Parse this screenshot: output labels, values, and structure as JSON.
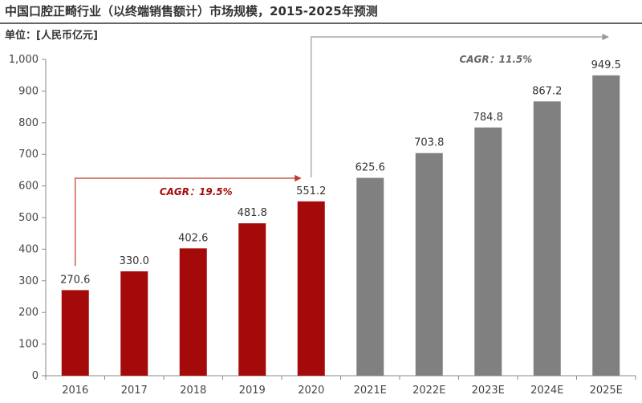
{
  "header": {
    "title": "中国口腔正畸行业（以终端销售额计）市场规模，2015-2025年预测",
    "unit": "单位：[人民币亿元]"
  },
  "chart_data": {
    "type": "bar",
    "categories": [
      "2016",
      "2017",
      "2018",
      "2019",
      "2020",
      "2021E",
      "2022E",
      "2023E",
      "2024E",
      "2025E"
    ],
    "values": [
      270.6,
      330.0,
      402.6,
      481.8,
      551.2,
      625.6,
      703.8,
      784.8,
      867.2,
      949.5
    ],
    "value_labels": [
      "270.6",
      "330.0",
      "402.6",
      "481.8",
      "551.2",
      "625.6",
      "703.8",
      "784.8",
      "867.2",
      "949.5"
    ],
    "title": "中国口腔正畸行业（以终端销售额计）市场规模，2015-2025年预测",
    "xlabel": "",
    "ylabel": "",
    "ylim": [
      0,
      1000
    ],
    "yticks": [
      0,
      100,
      200,
      300,
      400,
      500,
      600,
      700,
      800,
      900,
      1000
    ],
    "ytick_labels": [
      "0",
      "100",
      "200",
      "300",
      "400",
      "500",
      "600",
      "700",
      "800",
      "900",
      "1,000"
    ],
    "grid": false,
    "colors": {
      "historical": "#a50a0a",
      "forecast": "#808080",
      "axis": "#888888",
      "cagr_historical_text": "#a50a0a",
      "cagr_forecast_text": "#666666",
      "cagr_arrow_historical": "#c0392b",
      "cagr_arrow_forecast": "#999999"
    },
    "historical_count": 5,
    "annotations": [
      {
        "text": "CAGR：19.5%",
        "from_index": 0,
        "to_index": 4,
        "kind": "historical"
      },
      {
        "text": "CAGR：11.5%",
        "from_index": 4,
        "to_index": 9,
        "kind": "forecast"
      }
    ]
  }
}
